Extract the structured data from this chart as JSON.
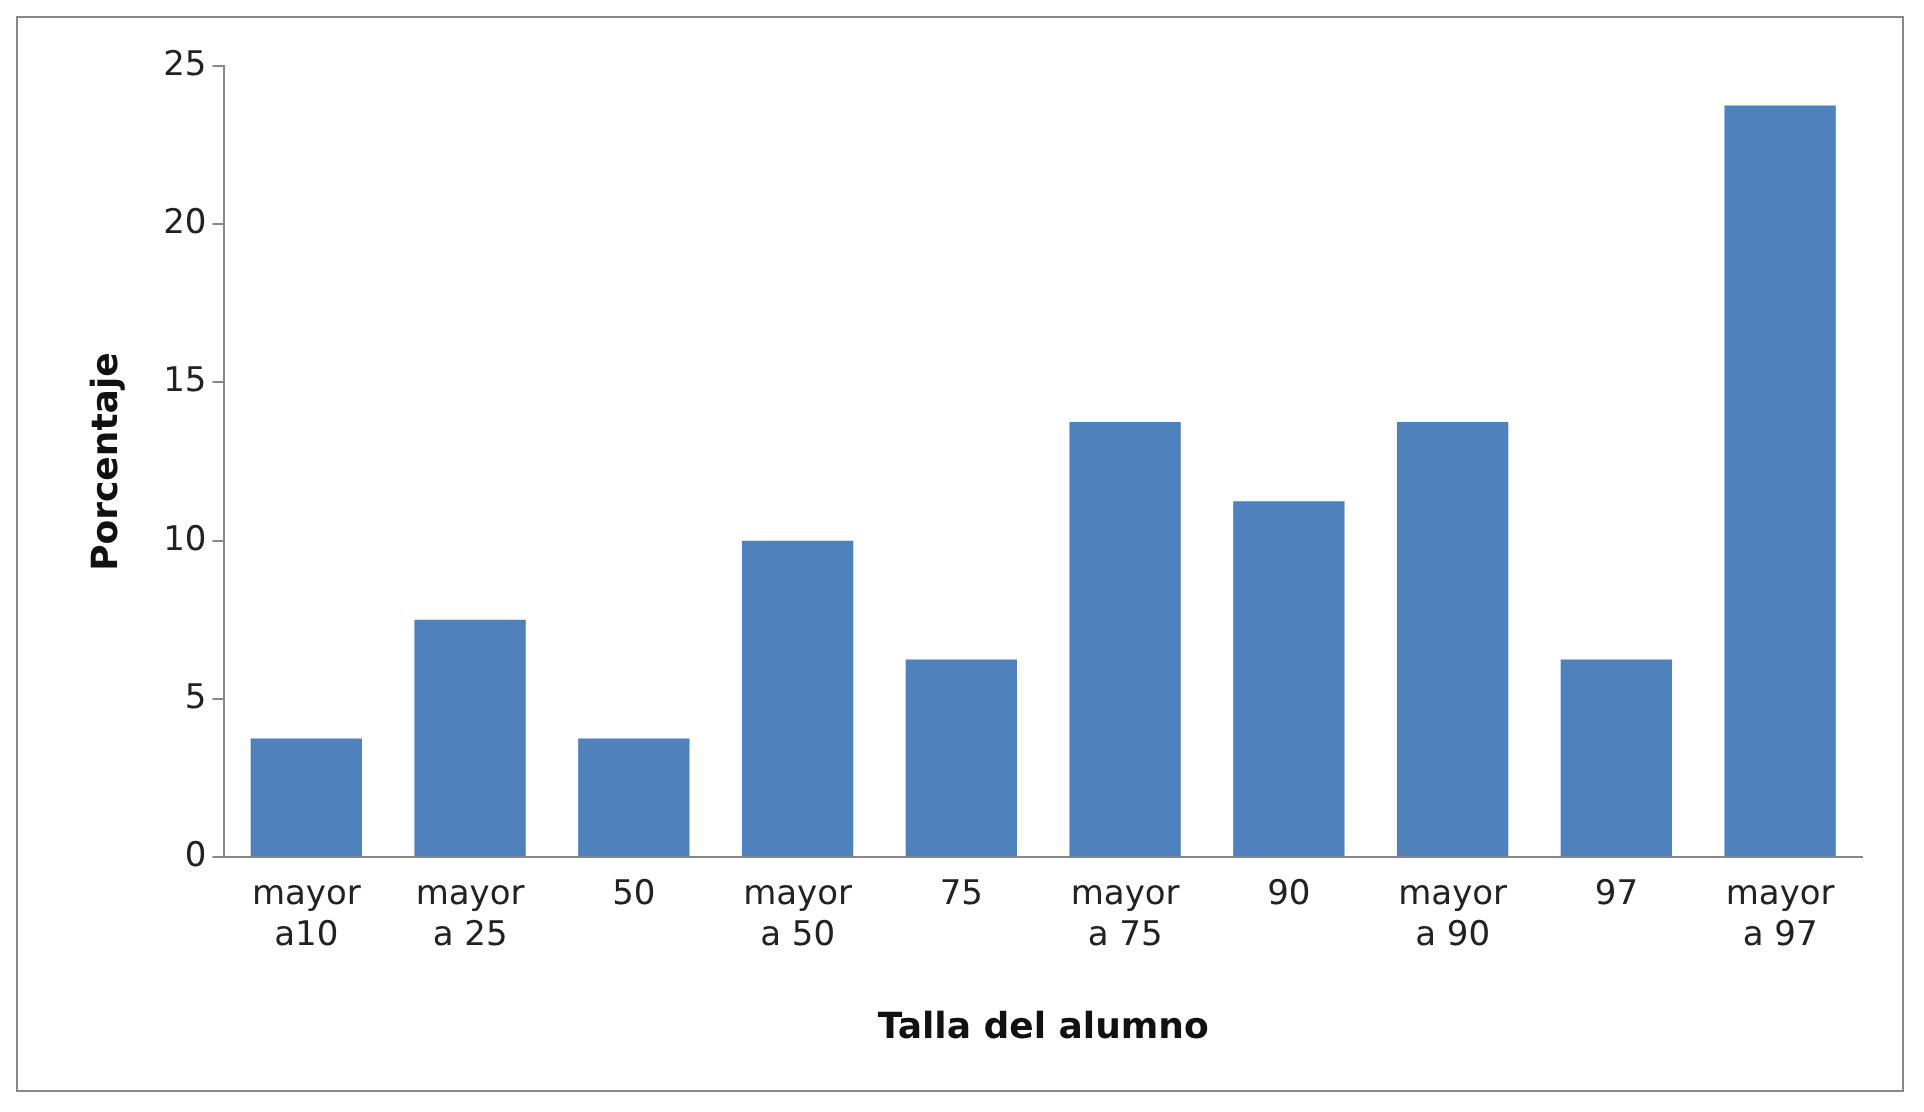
{
  "chart_data": {
    "type": "bar",
    "xlabel": "Talla del alumno",
    "ylabel": "Porcentaje",
    "categories": [
      "mayor a10",
      "mayor a 25",
      "50",
      "mayor a 50",
      "75",
      "mayor a 75",
      "90",
      "mayor a 90",
      "97",
      "mayor a 97"
    ],
    "values": [
      3.75,
      7.5,
      3.75,
      10,
      6.25,
      13.75,
      11.25,
      13.75,
      6.25,
      23.75
    ],
    "color": "#4f81bd",
    "ylim": [
      0,
      25
    ],
    "yticks": [
      0,
      5,
      10,
      15,
      20,
      25
    ],
    "grid": false,
    "legend": false
  }
}
